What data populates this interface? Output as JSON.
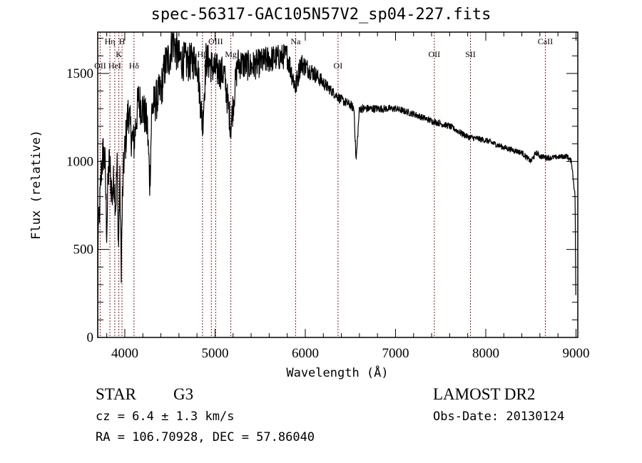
{
  "chart_data": {
    "type": "line",
    "title": "spec-56317-GAC105N57V2_sp04-227.fits",
    "xlabel": "Wavelength (Å)",
    "ylabel": "Flux (relative)",
    "xlim": [
      3700,
      9020
    ],
    "ylim": [
      0,
      1735
    ],
    "xticks": [
      4000,
      5000,
      6000,
      7000,
      8000,
      9000
    ],
    "yticks": [
      0,
      500,
      1000,
      1500
    ],
    "series": [
      {
        "name": "spectrum",
        "x": [
          3700,
          3705,
          3710,
          3740,
          3760,
          3780,
          3800,
          3815,
          3830,
          3860,
          3880,
          3900,
          3915,
          3930,
          3945,
          3960,
          3975,
          3990,
          4040,
          4070,
          4100,
          4150,
          4200,
          4250,
          4277,
          4300,
          4350,
          4400,
          4450,
          4500,
          4530,
          4600,
          4700,
          4800,
          4861,
          4900,
          5000,
          5100,
          5175,
          5250,
          5400,
          5600,
          5800,
          5893,
          5950,
          6100,
          6250,
          6400,
          6500,
          6540,
          6563,
          6600,
          6800,
          7000,
          7200,
          7400,
          7600,
          7800,
          8000,
          8200,
          8400,
          8500,
          8560,
          8600,
          8700,
          8900,
          8950,
          8990,
          9000
        ],
        "y": [
          0,
          700,
          600,
          950,
          1050,
          1000,
          600,
          900,
          1000,
          800,
          900,
          750,
          1000,
          500,
          900,
          400,
          800,
          1000,
          1300,
          1150,
          1100,
          1350,
          1300,
          1200,
          880,
          1300,
          1350,
          1400,
          1550,
          1600,
          1700,
          1580,
          1560,
          1580,
          1200,
          1580,
          1520,
          1500,
          1200,
          1560,
          1540,
          1580,
          1600,
          1420,
          1560,
          1500,
          1420,
          1350,
          1320,
          1300,
          1000,
          1300,
          1300,
          1300,
          1270,
          1230,
          1200,
          1140,
          1120,
          1080,
          1050,
          1000,
          1050,
          1030,
          1020,
          1030,
          1000,
          800,
          100
        ],
        "noise": [
          [
            3700,
            120
          ],
          [
            4500,
            120
          ],
          [
            5900,
            70
          ],
          [
            6300,
            30
          ],
          [
            7000,
            20
          ],
          [
            9000,
            15
          ]
        ]
      }
    ],
    "lines": [
      {
        "label": "OII",
        "wavelength": 3727,
        "row": 3
      },
      {
        "label": "Hη",
        "wavelength": 3835,
        "row": 1
      },
      {
        "label": "HeI",
        "wavelength": 3889,
        "row": 3
      },
      {
        "label": "K",
        "wavelength": 3934,
        "row": 2
      },
      {
        "label": "H",
        "wavelength": 3969,
        "row": 1
      },
      {
        "label": "Hδ",
        "wavelength": 4102,
        "row": 3
      },
      {
        "label": "Hβ",
        "wavelength": 4861,
        "row": 2
      },
      {
        "label": "OIII",
        "wavelength": 4959,
        "row": 3
      },
      {
        "label": "OIII",
        "wavelength": 5007,
        "row": 1
      },
      {
        "label": "Mg",
        "wavelength": 5175,
        "row": 2
      },
      {
        "label": "Na",
        "wavelength": 5893,
        "row": 1
      },
      {
        "label": "OI",
        "wavelength": 6363,
        "row": 3
      },
      {
        "label": "OII",
        "wavelength": 7430,
        "row": 2
      },
      {
        "label": "SII",
        "wavelength": 7830,
        "row": 2
      },
      {
        "label": "CaII",
        "wavelength": 8660,
        "row": 1
      }
    ],
    "line_color": "#8b1a1a",
    "grid": false
  },
  "info": {
    "class": "STAR",
    "subclass": "G3",
    "cz": "cz = 6.4 ± 1.3 km/s",
    "radec": "RA = 106.70928, DEC =  57.86040",
    "survey": "LAMOST DR2",
    "obsdate": "Obs-Date: 20130124"
  }
}
